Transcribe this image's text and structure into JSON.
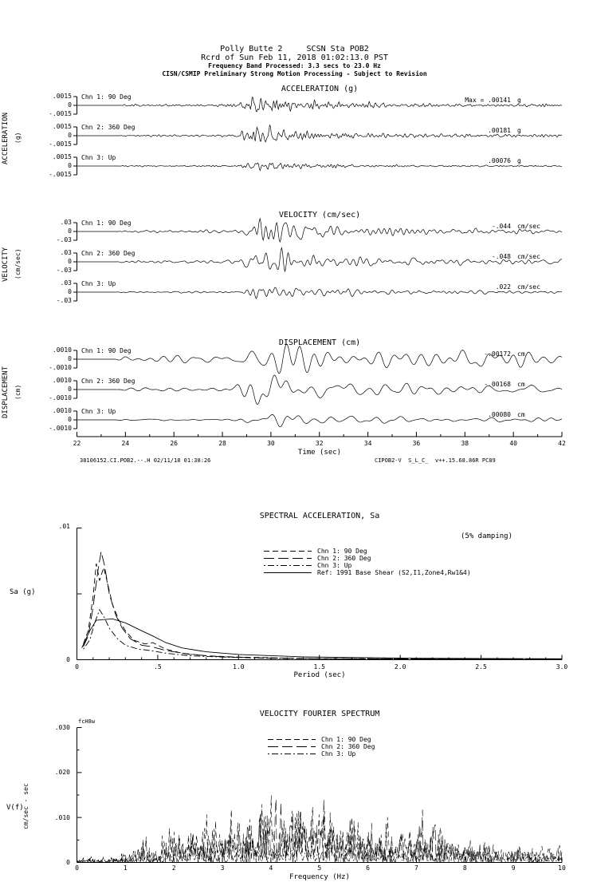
{
  "header": {
    "line1": "Polly Butte 2     SCSN Sta POB2",
    "line2": "Rcrd of Sun Feb 11, 2018 01:02:13.0 PST",
    "line3": "Frequency Band Processed: 3.3 secs to 23.0 Hz",
    "line4": "CISN/CSMIP Preliminary Strong Motion Processing - Subject to Revision"
  },
  "footer": {
    "left": "38106152.CI.POB2.--.H 02/11/18 01:38:26",
    "right": "CIPOB2-V  S_L_C_  v++.15.68.86R PC89"
  },
  "colors": {
    "ink": "#000000",
    "paper": "#ffffff"
  },
  "chart_data": [
    {
      "id": "acceleration",
      "type": "line",
      "title": "ACCELERATION (g)",
      "side_label": "ACCELERATION",
      "side_sub": "(g)",
      "xlim": [
        22,
        42
      ],
      "ylim": [
        -0.0015,
        0.0015
      ],
      "ytick_value": 0.0015,
      "ytick_labels": [
        ".0015",
        "0",
        "-.0015"
      ],
      "noise_band_hz": [
        1.5,
        9
      ],
      "envelope": [
        [
          22,
          0
        ],
        [
          23.7,
          0
        ],
        [
          23.9,
          0.1
        ],
        [
          28.6,
          0.16
        ],
        [
          29.05,
          0.55
        ],
        [
          29.35,
          1.0
        ],
        [
          30.4,
          0.85
        ],
        [
          31.2,
          0.5
        ],
        [
          33,
          0.32
        ],
        [
          35,
          0.24
        ],
        [
          38,
          0.18
        ],
        [
          42,
          0.14
        ]
      ],
      "series": [
        {
          "name": "Chn 1: 90 Deg",
          "peak": 0.00141,
          "peak_label": "Max = .00141",
          "unit": "g",
          "seed": 5
        },
        {
          "name": "Chn 2: 360 Deg",
          "peak": 0.00181,
          "peak_label": ".00181",
          "unit": "g",
          "seed": 12
        },
        {
          "name": "Chn 3: Up",
          "peak": 0.00076,
          "peak_label": ".00076",
          "unit": "g",
          "seed": 23
        }
      ]
    },
    {
      "id": "velocity",
      "type": "line",
      "title": "VELOCITY (cm/sec)",
      "side_label": "VELOCITY",
      "side_sub": "(cm/sec)",
      "xlim": [
        22,
        42
      ],
      "ylim": [
        -0.03,
        0.03
      ],
      "ytick_value": 0.03,
      "ytick_labels": [
        ".03",
        "0",
        "-.03"
      ],
      "noise_band_hz": [
        0.7,
        5
      ],
      "envelope": [
        [
          22,
          0
        ],
        [
          23.6,
          0
        ],
        [
          23.8,
          0.08
        ],
        [
          28.6,
          0.14
        ],
        [
          29.0,
          0.5
        ],
        [
          29.4,
          1.0
        ],
        [
          30.6,
          0.9
        ],
        [
          31.5,
          0.55
        ],
        [
          33,
          0.4
        ],
        [
          35,
          0.3
        ],
        [
          38,
          0.22
        ],
        [
          42,
          0.18
        ]
      ],
      "series": [
        {
          "name": "Chn 1: 90 Deg",
          "peak": 0.044,
          "peak_label": "-.044",
          "unit": "cm/sec",
          "seed": 31
        },
        {
          "name": "Chn 2: 360 Deg",
          "peak": 0.048,
          "peak_label": "-.048",
          "unit": "cm/sec",
          "seed": 47
        },
        {
          "name": "Chn 3: Up",
          "peak": 0.022,
          "peak_label": ".022",
          "unit": "cm/sec",
          "seed": 58
        }
      ]
    },
    {
      "id": "displacement",
      "type": "line",
      "title": "DISPLACEMENT (cm)",
      "side_label": "DISPLACEMENT",
      "side_sub": "(cm)",
      "xlabel": "Time (sec)",
      "xlim": [
        22,
        42
      ],
      "xticks": [
        22,
        24,
        26,
        28,
        30,
        32,
        34,
        36,
        38,
        40,
        42
      ],
      "xtick_labels": [
        "22",
        "24",
        "26",
        "28",
        "30",
        "32",
        "34",
        "36",
        "38",
        "40",
        "42"
      ],
      "ylim": [
        -0.001,
        0.001
      ],
      "ytick_value": 0.001,
      "ytick_labels": [
        ".0010",
        "0",
        "-.0010"
      ],
      "noise_band_hz": [
        0.35,
        2.2
      ],
      "envelope": [
        [
          22,
          0
        ],
        [
          23.6,
          0
        ],
        [
          23.9,
          0.12
        ],
        [
          28.5,
          0.18
        ],
        [
          29.0,
          0.6
        ],
        [
          29.5,
          1.0
        ],
        [
          30.5,
          0.95
        ],
        [
          31.5,
          0.6
        ],
        [
          33,
          0.45
        ],
        [
          35,
          0.38
        ],
        [
          38,
          0.3
        ],
        [
          42,
          0.26
        ]
      ],
      "series": [
        {
          "name": "Chn 1: 90 Deg",
          "peak": 0.00172,
          "peak_label": "-.00172",
          "unit": "cm",
          "seed": 71
        },
        {
          "name": "Chn 2: 360 Deg",
          "peak": 0.00168,
          "peak_label": "-.00168",
          "unit": "cm",
          "seed": 83
        },
        {
          "name": "Chn 3: Up",
          "peak": 0.0008,
          "peak_label": ".00080",
          "unit": "cm",
          "seed": 97
        }
      ]
    },
    {
      "id": "spectral_acceleration",
      "type": "line",
      "title": "SPECTRAL ACCELERATION, Sa",
      "annotation": "(5% damping)",
      "xlabel": "Period (sec)",
      "ylabel": "Sa (g)",
      "xlim": [
        0,
        3
      ],
      "ylim": [
        0,
        0.01
      ],
      "xticks": [
        0,
        0.5,
        1.0,
        1.5,
        2.0,
        2.5,
        3.0
      ],
      "xtick_labels": [
        "0",
        ".5",
        "1.0",
        "1.5",
        "2.0",
        "2.5",
        "3.0"
      ],
      "ytick_top_label": ".01",
      "ytick_bottom_label": "0",
      "series": [
        {
          "name": "Chn 1: 90 Deg",
          "style": "dashed",
          "points": [
            [
              0.04,
              0.0012
            ],
            [
              0.07,
              0.0022
            ],
            [
              0.1,
              0.0048
            ],
            [
              0.12,
              0.0073
            ],
            [
              0.14,
              0.006
            ],
            [
              0.165,
              0.007
            ],
            [
              0.19,
              0.0058
            ],
            [
              0.22,
              0.0042
            ],
            [
              0.26,
              0.003
            ],
            [
              0.3,
              0.0022
            ],
            [
              0.35,
              0.0015
            ],
            [
              0.42,
              0.0012
            ],
            [
              0.47,
              0.0013
            ],
            [
              0.55,
              0.0008
            ],
            [
              0.65,
              0.0005
            ],
            [
              0.8,
              0.0003
            ],
            [
              1.0,
              0.0002
            ],
            [
              1.3,
              0.00012
            ],
            [
              1.7,
              8e-05
            ],
            [
              2.2,
              6e-05
            ],
            [
              3.0,
              4e-05
            ]
          ]
        },
        {
          "name": "Chn 2: 360 Deg",
          "style": "long-dash",
          "points": [
            [
              0.04,
              0.001
            ],
            [
              0.07,
              0.0018
            ],
            [
              0.1,
              0.004
            ],
            [
              0.13,
              0.0068
            ],
            [
              0.15,
              0.0082
            ],
            [
              0.17,
              0.0072
            ],
            [
              0.2,
              0.005
            ],
            [
              0.24,
              0.0034
            ],
            [
              0.28,
              0.0024
            ],
            [
              0.33,
              0.0016
            ],
            [
              0.4,
              0.0011
            ],
            [
              0.46,
              0.001
            ],
            [
              0.55,
              0.0007
            ],
            [
              0.7,
              0.0004
            ],
            [
              0.9,
              0.00022
            ],
            [
              1.2,
              0.00012
            ],
            [
              1.6,
              8e-05
            ],
            [
              2.0,
              6e-05
            ],
            [
              3.0,
              4e-05
            ]
          ]
        },
        {
          "name": "Chn 3: Up",
          "style": "dash-dot",
          "points": [
            [
              0.04,
              0.0008
            ],
            [
              0.08,
              0.0015
            ],
            [
              0.11,
              0.0028
            ],
            [
              0.14,
              0.0038
            ],
            [
              0.17,
              0.0032
            ],
            [
              0.2,
              0.0024
            ],
            [
              0.25,
              0.0016
            ],
            [
              0.3,
              0.0011
            ],
            [
              0.38,
              0.0008
            ],
            [
              0.45,
              0.0007
            ],
            [
              0.55,
              0.0005
            ],
            [
              0.7,
              0.0003
            ],
            [
              0.9,
              0.0002
            ],
            [
              1.2,
              0.0001
            ],
            [
              1.6,
              7e-05
            ],
            [
              2.2,
              5e-05
            ],
            [
              3.0,
              3e-05
            ]
          ]
        },
        {
          "name": "Ref: 1991 Base Shear (S2,I1,Zone4,Rw1&4)",
          "style": "solid",
          "points": [
            [
              0.03,
              0.0009
            ],
            [
              0.08,
              0.0022
            ],
            [
              0.12,
              0.003
            ],
            [
              0.22,
              0.0031
            ],
            [
              0.3,
              0.0028
            ],
            [
              0.4,
              0.0022
            ],
            [
              0.47,
              0.0018
            ],
            [
              0.55,
              0.0013
            ],
            [
              0.65,
              0.0009
            ],
            [
              0.8,
              0.0006
            ],
            [
              1.0,
              0.0004
            ],
            [
              1.4,
              0.00022
            ],
            [
              2.0,
              0.00012
            ],
            [
              3.0,
              7e-05
            ]
          ]
        }
      ]
    },
    {
      "id": "velocity_fourier",
      "type": "line",
      "title": "VELOCITY FOURIER SPECTRUM",
      "corner_label": "fcH8w",
      "xlabel": "Frequency (Hz)",
      "ylabel": "V(f)",
      "ylabel_units": "cm/sec - sec",
      "xlim": [
        0,
        10
      ],
      "ylim": [
        0,
        0.03
      ],
      "xticks": [
        0,
        1,
        2,
        3,
        4,
        5,
        6,
        7,
        8,
        9,
        10
      ],
      "xtick_labels": [
        "0",
        "1",
        "2",
        "3",
        "4",
        "5",
        "6",
        "7",
        "8",
        "9",
        "10"
      ],
      "yticks": [
        0.03,
        0.02,
        0.01,
        0
      ],
      "ytick_labels": [
        ".030",
        ".020",
        ".010",
        "0"
      ],
      "series": [
        {
          "name": "Chn 1: 90 Deg",
          "style": "dashed",
          "seed": 7,
          "envelope": [
            [
              0,
              0.0006
            ],
            [
              0.5,
              0.0009
            ],
            [
              1,
              0.0018
            ],
            [
              1.5,
              0.003
            ],
            [
              2,
              0.0055
            ],
            [
              2.5,
              0.0065
            ],
            [
              3,
              0.006
            ],
            [
              3.5,
              0.0068
            ],
            [
              4,
              0.0085
            ],
            [
              4.5,
              0.009
            ],
            [
              5,
              0.0095
            ],
            [
              5.5,
              0.01
            ],
            [
              6,
              0.0065
            ],
            [
              6.5,
              0.0055
            ],
            [
              7,
              0.006
            ],
            [
              7.5,
              0.0055
            ],
            [
              8,
              0.0045
            ],
            [
              8.5,
              0.0035
            ],
            [
              9,
              0.0028
            ],
            [
              9.5,
              0.003
            ],
            [
              10,
              0.0032
            ]
          ]
        },
        {
          "name": "Chn 2: 360 Deg",
          "style": "long-dash",
          "seed": 8,
          "envelope": [
            [
              0,
              0.0006
            ],
            [
              0.5,
              0.001
            ],
            [
              1,
              0.002
            ],
            [
              1.5,
              0.0032
            ],
            [
              2,
              0.005
            ],
            [
              2.5,
              0.006
            ],
            [
              3,
              0.0065
            ],
            [
              3.5,
              0.008
            ],
            [
              4,
              0.0105
            ],
            [
              4.5,
              0.0115
            ],
            [
              5,
              0.01
            ],
            [
              5.5,
              0.009
            ],
            [
              6,
              0.006
            ],
            [
              6.5,
              0.005
            ],
            [
              7,
              0.0085
            ],
            [
              7.5,
              0.008
            ],
            [
              8,
              0.005
            ],
            [
              8.5,
              0.0035
            ],
            [
              9,
              0.0025
            ],
            [
              9.5,
              0.0022
            ],
            [
              10,
              0.002
            ]
          ]
        },
        {
          "name": "Chn 3: Up",
          "style": "dash-dot",
          "seed": 9,
          "envelope": [
            [
              0,
              0.0004
            ],
            [
              0.5,
              0.0007
            ],
            [
              1,
              0.0012
            ],
            [
              2,
              0.003
            ],
            [
              3,
              0.004
            ],
            [
              4,
              0.0055
            ],
            [
              4.5,
              0.006
            ],
            [
              5,
              0.0055
            ],
            [
              5.5,
              0.005
            ],
            [
              6,
              0.0045
            ],
            [
              6.5,
              0.004
            ],
            [
              7,
              0.0042
            ],
            [
              7.5,
              0.0038
            ],
            [
              8,
              0.003
            ],
            [
              8.5,
              0.0025
            ],
            [
              9,
              0.002
            ],
            [
              9.5,
              0.0018
            ],
            [
              10,
              0.0016
            ]
          ]
        }
      ]
    }
  ]
}
